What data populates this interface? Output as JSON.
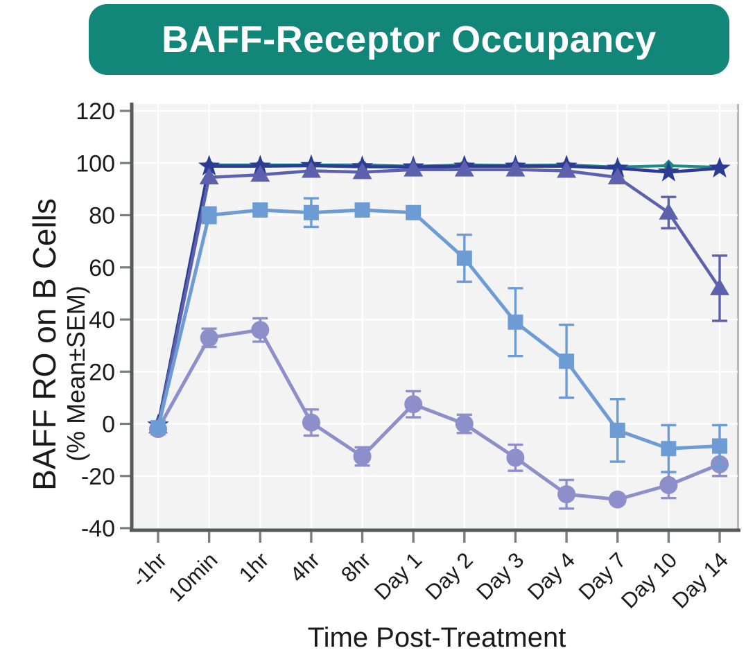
{
  "banner": {
    "title": "BAFF-Receptor Occupancy",
    "bg": "#13867A",
    "text_color": "#FFFFFF"
  },
  "chart_data": {
    "type": "line",
    "title": "BAFF-Receptor Occupancy",
    "xlabel": "Time Post-Treatment",
    "ylabel": "BAFF RO on B Cells",
    "ylabel_sub": "(% Mean±SEM)",
    "ylim": [
      -40,
      120
    ],
    "yticks": [
      120,
      100,
      80,
      60,
      40,
      20,
      0,
      -20,
      -40
    ],
    "categories": [
      "-1hr",
      "10min",
      "1hr",
      "4hr",
      "8hr",
      "Day 1",
      "Day 2",
      "Day 3",
      "Day 4",
      "Day 7",
      "Day 10",
      "Day 14"
    ],
    "grid": true,
    "legend": "none",
    "error_bars": "±SEM",
    "style": {
      "panel_bg": "#F2F3F2",
      "grid_color": "#FFFFFF",
      "axis_color": "#58595B",
      "tick_color": "#7C7E80",
      "label_color": "#1A1A1A",
      "panel_right_border": "#A7A9AC"
    },
    "series": [
      {
        "name": "teal-diamond",
        "marker": "diamond",
        "color": "#1E8A84",
        "values": [
          0,
          99.3,
          99.3,
          99.3,
          99.3,
          98.8,
          99.3,
          99.1,
          99.3,
          98.5,
          99,
          98.4
        ],
        "sem": [
          0,
          0,
          0,
          0,
          0,
          0,
          0,
          0,
          0,
          0,
          0,
          0
        ]
      },
      {
        "name": "navy-star",
        "marker": "star",
        "color": "#2C3B94",
        "values": [
          -0.5,
          98.8,
          98.8,
          99,
          98.6,
          98.5,
          98.8,
          98.8,
          98.8,
          98,
          96.5,
          98
        ],
        "sem": [
          0,
          0,
          0,
          0,
          0,
          0,
          0,
          0,
          0,
          0,
          0,
          0
        ]
      },
      {
        "name": "indigo-triangle",
        "marker": "triangle",
        "color": "#5D61AD",
        "values": [
          -1,
          94.5,
          95.5,
          97,
          96.5,
          97.5,
          97.5,
          97.5,
          97,
          94.5,
          81,
          52
        ],
        "sem": [
          0,
          0,
          0,
          0,
          0,
          0,
          0,
          0,
          0,
          0,
          6,
          12.5
        ]
      },
      {
        "name": "purple-circle",
        "marker": "circle",
        "color": "#8D8FCB",
        "values": [
          -2,
          33,
          36,
          0.5,
          -12.5,
          7.5,
          0,
          -13,
          -27,
          -29,
          -23.5,
          -15.5
        ],
        "sem": [
          0,
          3.5,
          4.5,
          5,
          3.5,
          5,
          3.5,
          5,
          5.5,
          0,
          5,
          4.5
        ]
      },
      {
        "name": "blue-square",
        "marker": "square",
        "color": "#6D9CD5",
        "values": [
          -1.5,
          80,
          82,
          81,
          82,
          81,
          63.5,
          39,
          24,
          -2.5,
          -9.5,
          -8.5
        ],
        "sem": [
          0,
          3,
          1.5,
          5.5,
          1.5,
          2,
          9,
          13,
          14,
          12,
          9,
          8
        ]
      }
    ]
  }
}
